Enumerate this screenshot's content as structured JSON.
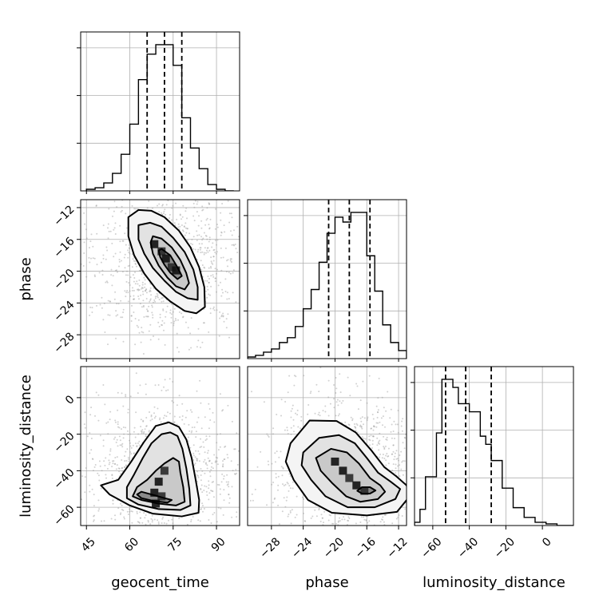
{
  "chart_data": {
    "type": "corner",
    "parameters": [
      {
        "name": "geocent_time",
        "xlabel": "geocent_time",
        "ticks": [
          45,
          60,
          75,
          90
        ],
        "range": [
          43,
          98
        ],
        "quantiles": [
          66,
          72,
          78
        ],
        "hist": {
          "edges": [
            45,
            48,
            51,
            54,
            57,
            60,
            63,
            66,
            69,
            72,
            75,
            78,
            81,
            84,
            87,
            90,
            93,
            96
          ],
          "counts": [
            0.01,
            0.02,
            0.05,
            0.11,
            0.23,
            0.42,
            0.7,
            0.86,
            0.92,
            0.92,
            0.79,
            0.46,
            0.27,
            0.14,
            0.04,
            0.01,
            0.0
          ]
        }
      },
      {
        "name": "phase",
        "ylabel": "phase",
        "xlabel": "phase",
        "ticks": [
          -28,
          -24,
          -20,
          -16,
          -12
        ],
        "range": [
          -31,
          -11
        ],
        "quantiles": [
          -20.8,
          -18.2,
          -15.6
        ],
        "hist": {
          "edges": [
            -31,
            -30,
            -29,
            -28,
            -27,
            -26,
            -25,
            -24,
            -23,
            -22,
            -21,
            -20,
            -19,
            -18,
            -17,
            -16,
            -15,
            -14,
            -13,
            -12,
            -11
          ],
          "counts": [
            0.01,
            0.02,
            0.04,
            0.06,
            0.1,
            0.13,
            0.2,
            0.31,
            0.43,
            0.6,
            0.78,
            0.88,
            0.85,
            0.91,
            0.91,
            0.64,
            0.42,
            0.21,
            0.1,
            0.05
          ]
        }
      },
      {
        "name": "luminosity_distance",
        "ylabel": "luminosity_distance",
        "xlabel": "luminosity_distance",
        "ticks": [
          -60,
          -40,
          -20,
          0
        ],
        "range": [
          -70,
          17
        ],
        "quantiles": [
          -53,
          -42,
          -28
        ],
        "hist": {
          "edges": [
            -70,
            -67,
            -64,
            -61,
            -58,
            -55,
            -52,
            -49,
            -46,
            -43,
            -40,
            -37,
            -34,
            -31,
            -28,
            -25,
            -22,
            -19,
            -16,
            -13,
            -10,
            -7,
            -4,
            -1,
            2,
            5,
            8,
            11,
            14,
            17
          ],
          "counts": [
            0.02,
            0.1,
            0.3,
            0.3,
            0.57,
            0.9,
            0.9,
            0.85,
            0.75,
            0.75,
            0.7,
            0.7,
            0.55,
            0.5,
            0.4,
            0.4,
            0.23,
            0.23,
            0.11,
            0.11,
            0.05,
            0.05,
            0.02,
            0.02,
            0.01,
            0.01,
            0.0,
            0.0,
            0.0
          ]
        }
      }
    ],
    "pairs": [
      {
        "x": "geocent_time",
        "y": "phase",
        "contours": [
          [
            [
              71,
              -17.2
            ],
            [
              74,
              -18
            ],
            [
              76,
              -19.2
            ],
            [
              77.2,
              -20
            ],
            [
              78,
              -20.6
            ],
            [
              76.5,
              -21
            ],
            [
              74,
              -20.2
            ],
            [
              72,
              -19.2
            ],
            [
              70.5,
              -18.2
            ],
            [
              70,
              -17.4
            ]
          ],
          [
            [
              68,
              -15.6
            ],
            [
              71,
              -15.9
            ],
            [
              74.5,
              -17
            ],
            [
              77.5,
              -18.6
            ],
            [
              79.5,
              -20.2
            ],
            [
              80.5,
              -21.5
            ],
            [
              79,
              -22.3
            ],
            [
              76,
              -21.9
            ],
            [
              73,
              -20.8
            ],
            [
              70,
              -19.3
            ],
            [
              68,
              -17.8
            ],
            [
              67.2,
              -16.4
            ]
          ],
          [
            [
              63,
              -14.2
            ],
            [
              67,
              -13.9
            ],
            [
              71,
              -14.4
            ],
            [
              75,
              -15.8
            ],
            [
              79,
              -17.6
            ],
            [
              82,
              -19.8
            ],
            [
              83.5,
              -22
            ],
            [
              83.5,
              -23.6
            ],
            [
              80,
              -23.4
            ],
            [
              76,
              -22.6
            ],
            [
              72,
              -21.2
            ],
            [
              68,
              -19.6
            ],
            [
              65,
              -17.8
            ],
            [
              63,
              -16
            ]
          ],
          [
            [
              59.5,
              -13.2
            ],
            [
              63,
              -12.3
            ],
            [
              67.5,
              -12.4
            ],
            [
              72,
              -13.2
            ],
            [
              77,
              -14.9
            ],
            [
              81,
              -17
            ],
            [
              84,
              -19.5
            ],
            [
              85.8,
              -22
            ],
            [
              86,
              -24.5
            ],
            [
              83,
              -25.3
            ],
            [
              79,
              -25
            ],
            [
              74,
              -23.8
            ],
            [
              69,
              -22.2
            ],
            [
              65,
              -20.3
            ],
            [
              61.5,
              -18
            ],
            [
              59.5,
              -15.6
            ]
          ]
        ],
        "density_peaks": [
          [
            68.5,
            -16.6
          ],
          [
            71,
            -17.5
          ],
          [
            72.5,
            -18.4
          ],
          [
            74.5,
            -19.5
          ],
          [
            76,
            -19.9
          ]
        ]
      },
      {
        "x": "geocent_time",
        "y": "luminosity_distance",
        "contours": [
          [
            [
              64,
              -51.5
            ],
            [
              68,
              -53.2
            ],
            [
              72,
              -55
            ],
            [
              74.5,
              -56
            ],
            [
              73,
              -57.5
            ],
            [
              68,
              -56.5
            ],
            [
              64,
              -55
            ],
            [
              62.5,
              -53
            ]
          ],
          [
            [
              62.5,
              -49
            ],
            [
              66,
              -45
            ],
            [
              69,
              -40
            ],
            [
              72,
              -36
            ],
            [
              75,
              -33
            ],
            [
              77,
              -35
            ],
            [
              77.5,
              -41
            ],
            [
              78.5,
              -49
            ],
            [
              79,
              -57
            ],
            [
              76,
              -59
            ],
            [
              70,
              -58
            ],
            [
              64,
              -56
            ],
            [
              61,
              -54
            ]
          ],
          [
            [
              61.5,
              -42
            ],
            [
              64.5,
              -33
            ],
            [
              67.5,
              -25
            ],
            [
              71,
              -20
            ],
            [
              74,
              -19
            ],
            [
              76.5,
              -21
            ],
            [
              78.2,
              -28
            ],
            [
              79.6,
              -39
            ],
            [
              80.6,
              -50
            ],
            [
              81,
              -59
            ],
            [
              77.5,
              -61.5
            ],
            [
              70,
              -61
            ],
            [
              63,
              -58.5
            ],
            [
              59,
              -55
            ],
            [
              59,
              -49
            ]
          ],
          [
            [
              56,
              -45
            ],
            [
              60.5,
              -35
            ],
            [
              64.8,
              -24.5
            ],
            [
              69,
              -15.5
            ],
            [
              73.5,
              -13.5
            ],
            [
              77,
              -16
            ],
            [
              79.6,
              -23
            ],
            [
              81.4,
              -33
            ],
            [
              82.8,
              -45
            ],
            [
              84,
              -56
            ],
            [
              83.8,
              -63
            ],
            [
              78,
              -65
            ],
            [
              68,
              -63.5
            ],
            [
              60,
              -59
            ],
            [
              53,
              -53
            ],
            [
              50,
              -48
            ]
          ]
        ],
        "density_peaks": [
          [
            68.5,
            -52
          ],
          [
            71,
            -54
          ],
          [
            70,
            -46
          ],
          [
            72,
            -40
          ],
          [
            69,
            -58
          ]
        ]
      },
      {
        "x": "phase",
        "y": "luminosity_distance",
        "contours": [
          [
            [
              -16.6,
              -49
            ],
            [
              -15.6,
              -49
            ],
            [
              -14.9,
              -50.8
            ],
            [
              -15.6,
              -52.5
            ],
            [
              -16.6,
              -52.5
            ],
            [
              -17.2,
              -51
            ]
          ],
          [
            [
              -22.4,
              -33
            ],
            [
              -20.5,
              -28
            ],
            [
              -18.5,
              -30
            ],
            [
              -17,
              -36
            ],
            [
              -15.6,
              -44
            ],
            [
              -14.3,
              -48
            ],
            [
              -13.7,
              -51.5
            ],
            [
              -14.6,
              -55.5
            ],
            [
              -16.8,
              -57
            ],
            [
              -18.6,
              -54
            ],
            [
              -20.3,
              -47
            ],
            [
              -21.8,
              -40
            ]
          ],
          [
            [
              -24,
              -30
            ],
            [
              -22,
              -22
            ],
            [
              -19.5,
              -20.5
            ],
            [
              -17.5,
              -25
            ],
            [
              -16,
              -33
            ],
            [
              -14.6,
              -41
            ],
            [
              -13,
              -46
            ],
            [
              -11.8,
              -50
            ],
            [
              -12.4,
              -55.5
            ],
            [
              -15,
              -60
            ],
            [
              -18.4,
              -60
            ],
            [
              -21.2,
              -54
            ],
            [
              -23,
              -45
            ],
            [
              -24.2,
              -37
            ]
          ],
          [
            [
              -25.6,
              -25
            ],
            [
              -23.2,
              -12.5
            ],
            [
              -19.8,
              -12.8
            ],
            [
              -17.4,
              -19
            ],
            [
              -15.4,
              -29
            ],
            [
              -13.8,
              -38
            ],
            [
              -12.3,
              -43
            ],
            [
              -11,
              -48
            ],
            [
              -10.6,
              -54
            ],
            [
              -12.2,
              -62.5
            ],
            [
              -16,
              -64.5
            ],
            [
              -20.4,
              -63
            ],
            [
              -23.4,
              -56
            ],
            [
              -25.2,
              -45
            ],
            [
              -26.2,
              -35
            ]
          ]
        ],
        "density_peaks": [
          [
            -19,
            -40
          ],
          [
            -18.2,
            -44
          ],
          [
            -17.3,
            -48
          ],
          [
            -16.3,
            -51
          ],
          [
            -20,
            -35
          ]
        ]
      }
    ]
  }
}
